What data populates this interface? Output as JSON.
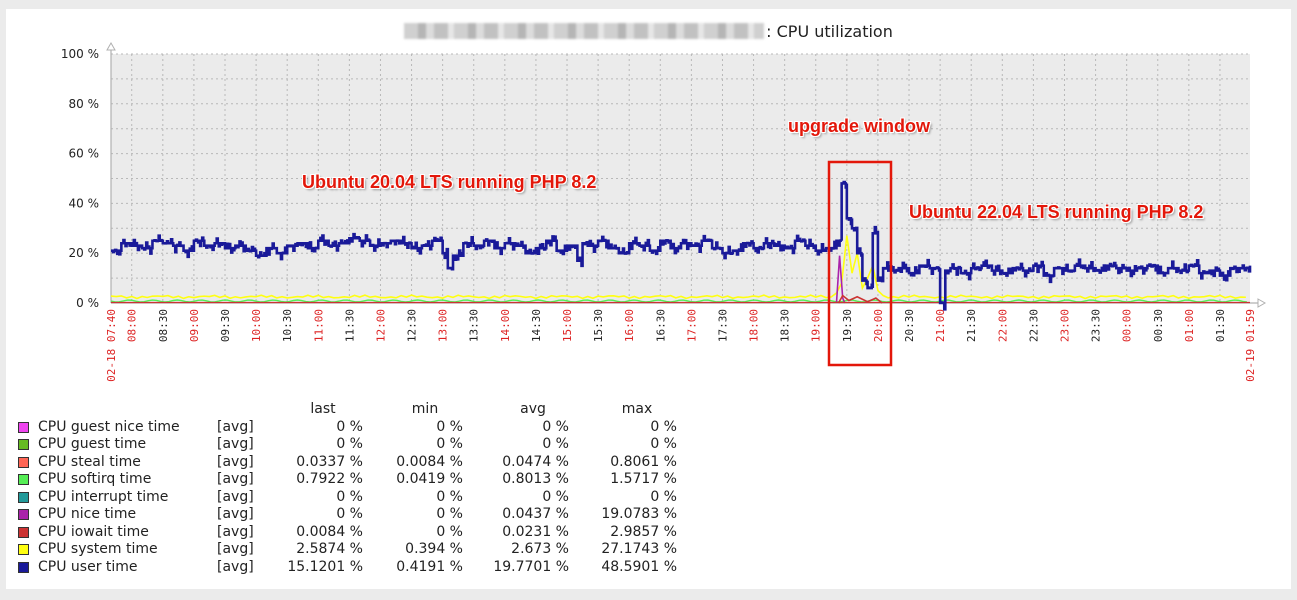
{
  "title": {
    "host_redacted": true,
    "text": ": CPU utilization"
  },
  "annotations": {
    "upgrade_window": "upgrade window",
    "before": "Ubuntu 20.04 LTS running PHP 8.2",
    "after": "Ubuntu 22.04 LTS running PHP 8.2"
  },
  "colors": {
    "plot_bg": "#ebebeb",
    "grid": "#b8b8b8",
    "axis": "#b0b0b0",
    "major_tick_label": "#dd2222",
    "minor_tick_label": "#222222",
    "annotation": "#e3170a"
  },
  "legend": {
    "headers": {
      "last": "last",
      "min": "min",
      "avg": "avg",
      "max": "max"
    },
    "rows": [
      {
        "name": "CPU guest nice time",
        "func": "[avg]",
        "color": "#ee44ee",
        "last": "0 %",
        "min": "0 %",
        "avg": "0 %",
        "max": "0 %"
      },
      {
        "name": "CPU guest time",
        "func": "[avg]",
        "color": "#66bb22",
        "last": "0 %",
        "min": "0 %",
        "avg": "0 %",
        "max": "0 %"
      },
      {
        "name": "CPU steal time",
        "func": "[avg]",
        "color": "#ff6655",
        "last": "0.0337 %",
        "min": "0.0084 %",
        "avg": "0.0474 %",
        "max": "0.8061 %"
      },
      {
        "name": "CPU softirq time",
        "func": "[avg]",
        "color": "#55ee55",
        "last": "0.7922 %",
        "min": "0.0419 %",
        "avg": "0.8013 %",
        "max": "1.5717 %"
      },
      {
        "name": "CPU interrupt time",
        "func": "[avg]",
        "color": "#229999",
        "last": "0 %",
        "min": "0 %",
        "avg": "0 %",
        "max": "0 %"
      },
      {
        "name": "CPU nice time",
        "func": "[avg]",
        "color": "#aa22aa",
        "last": "0 %",
        "min": "0 %",
        "avg": "0.0437 %",
        "max": "19.0783 %"
      },
      {
        "name": "CPU iowait time",
        "func": "[avg]",
        "color": "#cc3333",
        "last": "0.0084 %",
        "min": "0 %",
        "avg": "0.0231 %",
        "max": "2.9857 %"
      },
      {
        "name": "CPU system time",
        "func": "[avg]",
        "color": "#ffff11",
        "last": "2.5874 %",
        "min": "0.394 %",
        "avg": "2.673 %",
        "max": "27.1743 %"
      },
      {
        "name": "CPU user time",
        "func": "[avg]",
        "color": "#1a1a99",
        "last": "15.1201 %",
        "min": "0.4191 %",
        "avg": "19.7701 %",
        "max": "48.5901 %"
      }
    ]
  },
  "chart_data": {
    "type": "line",
    "title": ": CPU utilization",
    "xlabel": "",
    "ylabel": "",
    "ylim": [
      0,
      100
    ],
    "y_ticks": [
      "0 %",
      "20 %",
      "40 %",
      "60 %",
      "80 %",
      "100 %"
    ],
    "x_start": "02-18 07:40",
    "x_end": "02-19 01:59",
    "x_ticks": [
      {
        "label": "02-18 07:40",
        "major": true,
        "min": 0
      },
      {
        "label": "08:00",
        "major": true,
        "min": 20
      },
      {
        "label": "08:30",
        "major": false,
        "min": 50
      },
      {
        "label": "09:00",
        "major": true,
        "min": 80
      },
      {
        "label": "09:30",
        "major": false,
        "min": 110
      },
      {
        "label": "10:00",
        "major": true,
        "min": 140
      },
      {
        "label": "10:30",
        "major": false,
        "min": 170
      },
      {
        "label": "11:00",
        "major": true,
        "min": 200
      },
      {
        "label": "11:30",
        "major": false,
        "min": 230
      },
      {
        "label": "12:00",
        "major": true,
        "min": 260
      },
      {
        "label": "12:30",
        "major": false,
        "min": 290
      },
      {
        "label": "13:00",
        "major": true,
        "min": 320
      },
      {
        "label": "13:30",
        "major": false,
        "min": 350
      },
      {
        "label": "14:00",
        "major": true,
        "min": 380
      },
      {
        "label": "14:30",
        "major": false,
        "min": 410
      },
      {
        "label": "15:00",
        "major": true,
        "min": 440
      },
      {
        "label": "15:30",
        "major": false,
        "min": 470
      },
      {
        "label": "16:00",
        "major": true,
        "min": 500
      },
      {
        "label": "16:30",
        "major": false,
        "min": 530
      },
      {
        "label": "17:00",
        "major": true,
        "min": 560
      },
      {
        "label": "17:30",
        "major": false,
        "min": 590
      },
      {
        "label": "18:00",
        "major": true,
        "min": 620
      },
      {
        "label": "18:30",
        "major": false,
        "min": 650
      },
      {
        "label": "19:00",
        "major": true,
        "min": 680
      },
      {
        "label": "19:30",
        "major": false,
        "min": 710
      },
      {
        "label": "20:00",
        "major": true,
        "min": 740
      },
      {
        "label": "20:30",
        "major": false,
        "min": 770
      },
      {
        "label": "21:00",
        "major": true,
        "min": 800
      },
      {
        "label": "21:30",
        "major": false,
        "min": 830
      },
      {
        "label": "22:00",
        "major": true,
        "min": 860
      },
      {
        "label": "22:30",
        "major": false,
        "min": 890
      },
      {
        "label": "23:00",
        "major": true,
        "min": 920
      },
      {
        "label": "23:30",
        "major": false,
        "min": 950
      },
      {
        "label": "00:00",
        "major": true,
        "min": 980
      },
      {
        "label": "00:30",
        "major": false,
        "min": 1010
      },
      {
        "label": "01:00",
        "major": true,
        "min": 1040
      },
      {
        "label": "01:30",
        "major": false,
        "min": 1070
      },
      {
        "label": "02-19 01:59",
        "major": true,
        "min": 1099
      }
    ],
    "series": [
      {
        "name": "CPU user time",
        "color": "#1a1a99",
        "x_minutes": [
          0,
          10,
          20,
          30,
          40,
          50,
          60,
          70,
          80,
          90,
          100,
          110,
          120,
          130,
          140,
          150,
          160,
          170,
          180,
          190,
          200,
          210,
          220,
          230,
          240,
          250,
          260,
          270,
          280,
          290,
          300,
          310,
          320,
          325,
          330,
          340,
          350,
          360,
          370,
          380,
          390,
          400,
          410,
          420,
          430,
          440,
          450,
          455,
          460,
          470,
          480,
          490,
          500,
          510,
          520,
          530,
          540,
          550,
          560,
          570,
          580,
          590,
          600,
          610,
          620,
          630,
          640,
          650,
          660,
          670,
          680,
          690,
          700,
          705,
          710,
          715,
          720,
          725,
          730,
          735,
          740,
          745,
          750,
          760,
          770,
          780,
          790,
          795,
          800,
          805,
          810,
          820,
          830,
          840,
          850,
          860,
          870,
          880,
          890,
          900,
          910,
          920,
          930,
          940,
          950,
          960,
          970,
          980,
          990,
          1000,
          1010,
          1020,
          1030,
          1040,
          1050,
          1060,
          1070,
          1080,
          1090,
          1099
        ],
        "values": [
          21,
          24,
          23,
          22,
          25,
          24,
          23,
          21,
          25,
          23,
          24,
          22,
          23,
          21,
          19,
          22,
          20,
          23,
          24,
          22,
          25,
          23,
          24,
          26,
          25,
          23,
          24,
          25,
          24,
          22,
          23,
          25,
          20,
          14,
          19,
          24,
          23,
          25,
          22,
          24,
          23,
          20,
          22,
          25,
          21,
          23,
          17,
          24,
          23,
          25,
          22,
          20,
          24,
          23,
          21,
          25,
          22,
          24,
          23,
          25,
          22,
          20,
          21,
          24,
          22,
          24,
          23,
          22,
          25,
          23,
          21,
          22,
          25,
          48,
          34,
          30,
          20,
          9,
          6,
          28,
          9,
          14,
          13,
          14,
          12,
          15,
          14,
          14,
          0,
          13,
          14,
          12,
          14,
          15,
          13,
          12,
          14,
          13,
          15,
          11,
          14,
          13,
          15,
          14,
          13,
          15,
          14,
          13,
          14,
          15,
          12,
          14,
          13,
          15,
          12,
          13,
          11,
          14,
          14,
          15
        ],
        "note": "approximate, read from plot"
      },
      {
        "name": "CPU system time",
        "color": "#ffff11",
        "values_summary": "~2.5% baseline throughout, spikes up to ~27% during 19:20-19:50 upgrade window"
      },
      {
        "name": "CPU nice time",
        "color": "#aa22aa",
        "values_summary": "0% except spike to ~19% around 19:25"
      },
      {
        "name": "CPU iowait time",
        "color": "#cc3333",
        "values_summary": "~0% except small spikes up to ~3% during upgrade window"
      },
      {
        "name": "CPU softirq time",
        "color": "#55ee55",
        "values_summary": "~0.8% baseline"
      },
      {
        "name": "CPU steal time",
        "color": "#ff6655",
        "values_summary": "~0.05%"
      },
      {
        "name": "CPU guest nice time",
        "color": "#ee44ee",
        "values_summary": "0%"
      },
      {
        "name": "CPU guest time",
        "color": "#66bb22",
        "values_summary": "0%"
      },
      {
        "name": "CPU interrupt time",
        "color": "#229999",
        "values_summary": "0%"
      }
    ],
    "annotations": [
      {
        "text": "Ubuntu 20.04 LTS running PHP 8.2",
        "region": "07:40-19:15"
      },
      {
        "text": "upgrade window",
        "region": "19:15-20:05",
        "box": true
      },
      {
        "text": "Ubuntu 22.04 LTS running PHP 8.2",
        "region": "20:05-01:59"
      }
    ],
    "grid": true,
    "legend_position": "bottom"
  }
}
